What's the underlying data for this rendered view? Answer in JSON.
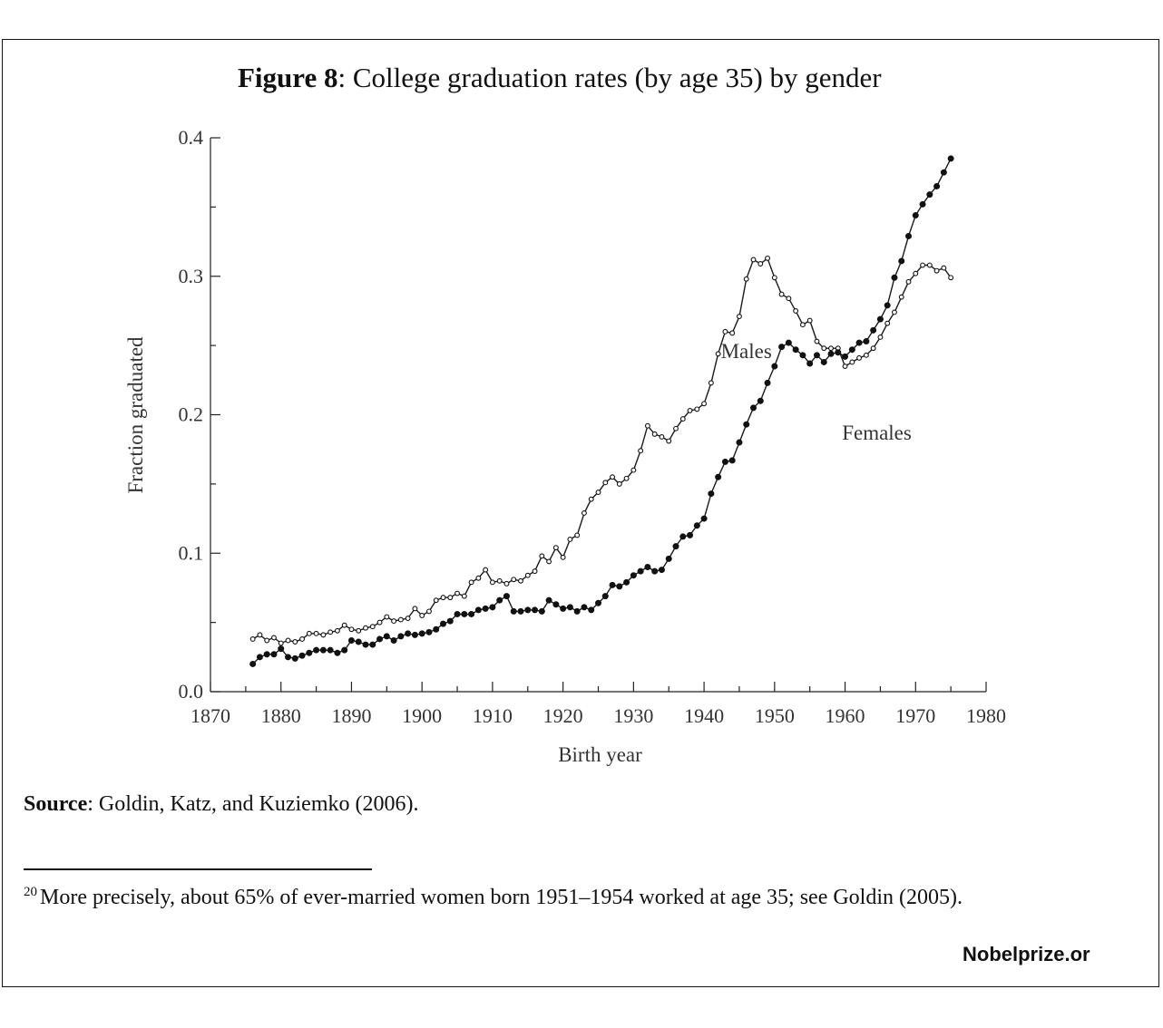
{
  "figure": {
    "title_bold": "Figure 8",
    "title_rest": ": College graduation rates (by age 35) by gender"
  },
  "source": {
    "bold": "Source",
    "rest": ": Goldin, Katz, and Kuziemko (2006)."
  },
  "footnote": {
    "number": "20",
    "text": "More precisely, about 65% of ever-married women born 1951–1954 worked at age 35; see Goldin (2005)."
  },
  "watermark": "Nobelprize.or",
  "chart_data": {
    "type": "line",
    "title": "",
    "xlabel": "Birth year",
    "ylabel": "Fraction graduated",
    "xlim": [
      1870,
      1980
    ],
    "ylim": [
      0.0,
      0.4
    ],
    "x_ticks": [
      1870,
      1880,
      1890,
      1900,
      1910,
      1920,
      1930,
      1940,
      1950,
      1960,
      1970,
      1980
    ],
    "y_ticks": [
      "0.0",
      "0.1",
      "0.2",
      "0.3",
      "0.4"
    ],
    "grid": false,
    "annotations": [
      {
        "text": "Males",
        "x": 1946,
        "y": 0.241
      },
      {
        "text": "Females",
        "x": 1964.5,
        "y": 0.182
      }
    ],
    "series": [
      {
        "name": "Males",
        "marker": "open-circle",
        "x": [
          1876,
          1877,
          1878,
          1879,
          1880,
          1881,
          1882,
          1883,
          1884,
          1885,
          1886,
          1887,
          1888,
          1889,
          1890,
          1891,
          1892,
          1893,
          1894,
          1895,
          1896,
          1897,
          1898,
          1899,
          1900,
          1901,
          1902,
          1903,
          1904,
          1905,
          1906,
          1907,
          1908,
          1909,
          1910,
          1911,
          1912,
          1913,
          1914,
          1915,
          1916,
          1917,
          1918,
          1919,
          1920,
          1921,
          1922,
          1923,
          1924,
          1925,
          1926,
          1927,
          1928,
          1929,
          1930,
          1931,
          1932,
          1933,
          1934,
          1935,
          1936,
          1937,
          1938,
          1939,
          1940,
          1941,
          1942,
          1943,
          1944,
          1945,
          1946,
          1947,
          1948,
          1949,
          1950,
          1951,
          1952,
          1953,
          1954,
          1955,
          1956,
          1957,
          1958,
          1959,
          1960,
          1961,
          1962,
          1963,
          1964,
          1965,
          1966,
          1967,
          1968,
          1969,
          1970,
          1971,
          1972,
          1973,
          1974,
          1975
        ],
        "y": [
          0.038,
          0.041,
          0.037,
          0.039,
          0.035,
          0.037,
          0.036,
          0.038,
          0.042,
          0.042,
          0.041,
          0.043,
          0.044,
          0.048,
          0.045,
          0.044,
          0.046,
          0.047,
          0.05,
          0.054,
          0.051,
          0.052,
          0.053,
          0.06,
          0.055,
          0.058,
          0.066,
          0.068,
          0.068,
          0.071,
          0.069,
          0.079,
          0.082,
          0.088,
          0.079,
          0.08,
          0.078,
          0.081,
          0.08,
          0.084,
          0.087,
          0.098,
          0.094,
          0.104,
          0.097,
          0.11,
          0.113,
          0.129,
          0.139,
          0.144,
          0.151,
          0.155,
          0.15,
          0.154,
          0.16,
          0.174,
          0.192,
          0.186,
          0.184,
          0.181,
          0.19,
          0.197,
          0.203,
          0.204,
          0.208,
          0.223,
          0.244,
          0.26,
          0.259,
          0.271,
          0.298,
          0.312,
          0.309,
          0.313,
          0.299,
          0.287,
          0.284,
          0.275,
          0.265,
          0.268,
          0.253,
          0.248,
          0.248,
          0.248,
          0.235,
          0.238,
          0.241,
          0.243,
          0.248,
          0.256,
          0.266,
          0.274,
          0.285,
          0.296,
          0.302,
          0.308,
          0.308,
          0.304,
          0.306,
          0.299
        ]
      },
      {
        "name": "Females",
        "marker": "filled-circle",
        "x": [
          1876,
          1877,
          1878,
          1879,
          1880,
          1881,
          1882,
          1883,
          1884,
          1885,
          1886,
          1887,
          1888,
          1889,
          1890,
          1891,
          1892,
          1893,
          1894,
          1895,
          1896,
          1897,
          1898,
          1899,
          1900,
          1901,
          1902,
          1903,
          1904,
          1905,
          1906,
          1907,
          1908,
          1909,
          1910,
          1911,
          1912,
          1913,
          1914,
          1915,
          1916,
          1917,
          1918,
          1919,
          1920,
          1921,
          1922,
          1923,
          1924,
          1925,
          1926,
          1927,
          1928,
          1929,
          1930,
          1931,
          1932,
          1933,
          1934,
          1935,
          1936,
          1937,
          1938,
          1939,
          1940,
          1941,
          1942,
          1943,
          1944,
          1945,
          1946,
          1947,
          1948,
          1949,
          1950,
          1951,
          1952,
          1953,
          1954,
          1955,
          1956,
          1957,
          1958,
          1959,
          1960,
          1961,
          1962,
          1963,
          1964,
          1965,
          1966,
          1967,
          1968,
          1969,
          1970,
          1971,
          1972,
          1973,
          1974,
          1975
        ],
        "y": [
          0.02,
          0.025,
          0.027,
          0.027,
          0.031,
          0.025,
          0.024,
          0.026,
          0.028,
          0.03,
          0.03,
          0.03,
          0.028,
          0.03,
          0.037,
          0.036,
          0.034,
          0.034,
          0.038,
          0.04,
          0.037,
          0.04,
          0.042,
          0.041,
          0.042,
          0.043,
          0.045,
          0.049,
          0.051,
          0.056,
          0.056,
          0.056,
          0.059,
          0.06,
          0.061,
          0.066,
          0.069,
          0.058,
          0.058,
          0.059,
          0.059,
          0.058,
          0.066,
          0.063,
          0.06,
          0.061,
          0.058,
          0.061,
          0.059,
          0.064,
          0.069,
          0.077,
          0.076,
          0.079,
          0.084,
          0.087,
          0.09,
          0.087,
          0.088,
          0.096,
          0.105,
          0.112,
          0.113,
          0.12,
          0.125,
          0.143,
          0.155,
          0.166,
          0.167,
          0.18,
          0.193,
          0.205,
          0.21,
          0.223,
          0.235,
          0.249,
          0.252,
          0.247,
          0.243,
          0.237,
          0.243,
          0.238,
          0.244,
          0.245,
          0.242,
          0.247,
          0.252,
          0.253,
          0.261,
          0.269,
          0.279,
          0.299,
          0.311,
          0.329,
          0.344,
          0.352,
          0.359,
          0.365,
          0.375,
          0.385
        ]
      }
    ]
  }
}
